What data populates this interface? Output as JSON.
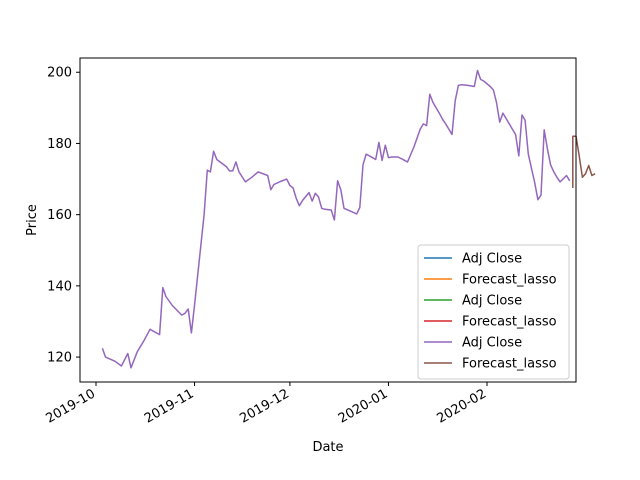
{
  "chart_data": {
    "type": "line",
    "xlabel": "Date",
    "ylabel": "Price",
    "x_ticks": [
      "2019-10",
      "2019-11",
      "2019-12",
      "2020-01",
      "2020-02"
    ],
    "y_ticks": [
      120,
      140,
      160,
      180,
      200
    ],
    "xlim": [
      "2019-09-29",
      "2020-02-28"
    ],
    "ylim": [
      113,
      204
    ],
    "grid": false,
    "legend_position": "lower-right",
    "legend": [
      {
        "name": "Adj Close",
        "color": "#1f77b4"
      },
      {
        "name": "Forecast_lasso",
        "color": "#ff7f0e"
      },
      {
        "name": "Adj Close",
        "color": "#2ca02c"
      },
      {
        "name": "Forecast_lasso",
        "color": "#d62728"
      },
      {
        "name": "Adj Close",
        "color": "#9467bd"
      },
      {
        "name": "Forecast_lasso",
        "color": "#8c564b"
      }
    ],
    "adj_close": {
      "color": "#9467bd",
      "points": [
        [
          "2019-10-03",
          122.5
        ],
        [
          "2019-10-04",
          120.0
        ],
        [
          "2019-10-07",
          118.8
        ],
        [
          "2019-10-09",
          117.5
        ],
        [
          "2019-10-11",
          121.0
        ],
        [
          "2019-10-12",
          117.0
        ],
        [
          "2019-10-14",
          121.5
        ],
        [
          "2019-10-16",
          124.5
        ],
        [
          "2019-10-18",
          127.8
        ],
        [
          "2019-10-21",
          126.3
        ],
        [
          "2019-10-22",
          139.5
        ],
        [
          "2019-10-23",
          137.0
        ],
        [
          "2019-10-25",
          134.5
        ],
        [
          "2019-10-28",
          131.8
        ],
        [
          "2019-10-29",
          132.3
        ],
        [
          "2019-10-30",
          133.5
        ],
        [
          "2019-10-31",
          126.8
        ],
        [
          "2019-11-01",
          134.5
        ],
        [
          "2019-11-04",
          160.0
        ],
        [
          "2019-11-05",
          172.5
        ],
        [
          "2019-11-06",
          172.0
        ],
        [
          "2019-11-07",
          177.8
        ],
        [
          "2019-11-08",
          175.5
        ],
        [
          "2019-11-11",
          173.5
        ],
        [
          "2019-11-12",
          172.3
        ],
        [
          "2019-11-13",
          172.3
        ],
        [
          "2019-11-14",
          174.8
        ],
        [
          "2019-11-15",
          172.0
        ],
        [
          "2019-11-17",
          169.2
        ],
        [
          "2019-11-19",
          170.5
        ],
        [
          "2019-11-21",
          172.0
        ],
        [
          "2019-11-24",
          171.0
        ],
        [
          "2019-11-25",
          167.0
        ],
        [
          "2019-11-26",
          168.5
        ],
        [
          "2019-11-28",
          169.3
        ],
        [
          "2019-11-30",
          170.0
        ],
        [
          "2019-12-01",
          168.2
        ],
        [
          "2019-12-02",
          167.5
        ],
        [
          "2019-12-03",
          164.5
        ],
        [
          "2019-12-04",
          162.5
        ],
        [
          "2019-12-05",
          164.0
        ],
        [
          "2019-12-07",
          166.2
        ],
        [
          "2019-12-08",
          163.8
        ],
        [
          "2019-12-09",
          166.0
        ],
        [
          "2019-12-10",
          165.0
        ],
        [
          "2019-12-11",
          161.8
        ],
        [
          "2019-12-12",
          161.5
        ],
        [
          "2019-12-14",
          161.3
        ],
        [
          "2019-12-15",
          158.5
        ],
        [
          "2019-12-16",
          169.5
        ],
        [
          "2019-12-17",
          167.0
        ],
        [
          "2019-12-18",
          161.8
        ],
        [
          "2019-12-20",
          161.0
        ],
        [
          "2019-12-22",
          160.2
        ],
        [
          "2019-12-23",
          162.0
        ],
        [
          "2019-12-24",
          174.0
        ],
        [
          "2019-12-25",
          177.0
        ],
        [
          "2019-12-27",
          176.0
        ],
        [
          "2019-12-28",
          175.5
        ],
        [
          "2019-12-29",
          180.3
        ],
        [
          "2019-12-30",
          175.2
        ],
        [
          "2019-12-31",
          179.5
        ],
        [
          "2020-01-01",
          176.0
        ],
        [
          "2020-01-02",
          176.2
        ],
        [
          "2020-01-04",
          176.2
        ],
        [
          "2020-01-06",
          175.3
        ],
        [
          "2020-01-07",
          174.8
        ],
        [
          "2020-01-09",
          179.0
        ],
        [
          "2020-01-11",
          184.0
        ],
        [
          "2020-01-12",
          185.5
        ],
        [
          "2020-01-13",
          185.0
        ],
        [
          "2020-01-14",
          193.8
        ],
        [
          "2020-01-15",
          191.5
        ],
        [
          "2020-01-16",
          190.0
        ],
        [
          "2020-01-17",
          188.5
        ],
        [
          "2020-01-18",
          186.8
        ],
        [
          "2020-01-19",
          185.5
        ],
        [
          "2020-01-21",
          182.5
        ],
        [
          "2020-01-22",
          192.0
        ],
        [
          "2020-01-23",
          196.3
        ],
        [
          "2020-01-24",
          196.5
        ],
        [
          "2020-01-26",
          196.3
        ],
        [
          "2020-01-28",
          196.0
        ],
        [
          "2020-01-29",
          200.5
        ],
        [
          "2020-01-30",
          198.0
        ],
        [
          "2020-01-31",
          197.5
        ],
        [
          "2020-02-02",
          196.0
        ],
        [
          "2020-02-03",
          195.0
        ],
        [
          "2020-02-04",
          191.5
        ],
        [
          "2020-02-05",
          186.0
        ],
        [
          "2020-02-06",
          188.5
        ],
        [
          "2020-02-07",
          187.0
        ],
        [
          "2020-02-08",
          185.5
        ],
        [
          "2020-02-09",
          184.0
        ],
        [
          "2020-02-10",
          182.5
        ],
        [
          "2020-02-11",
          176.5
        ],
        [
          "2020-02-12",
          188.0
        ],
        [
          "2020-02-13",
          186.5
        ],
        [
          "2020-02-14",
          177.0
        ],
        [
          "2020-02-15",
          173.0
        ],
        [
          "2020-02-16",
          169.0
        ],
        [
          "2020-02-17",
          164.2
        ],
        [
          "2020-02-18",
          165.5
        ],
        [
          "2020-02-19",
          183.8
        ],
        [
          "2020-02-20",
          178.5
        ],
        [
          "2020-02-21",
          174.0
        ],
        [
          "2020-02-22",
          172.0
        ],
        [
          "2020-02-23",
          170.5
        ],
        [
          "2020-02-24",
          169.2
        ],
        [
          "2020-02-26",
          171.0
        ],
        [
          "2020-02-27",
          169.5
        ]
      ]
    },
    "forecast_lasso": {
      "color": "#8c564b",
      "points": [
        [
          "2020-02-28",
          167.5
        ],
        [
          "2020-02-28",
          182.0
        ],
        [
          "2020-02-29",
          182.0
        ],
        [
          "2020-03-01",
          176.5
        ],
        [
          "2020-03-02",
          170.5
        ],
        [
          "2020-03-03",
          171.5
        ],
        [
          "2020-03-04",
          173.8
        ],
        [
          "2020-03-05",
          171.0
        ],
        [
          "2020-03-06",
          171.5
        ]
      ]
    }
  }
}
